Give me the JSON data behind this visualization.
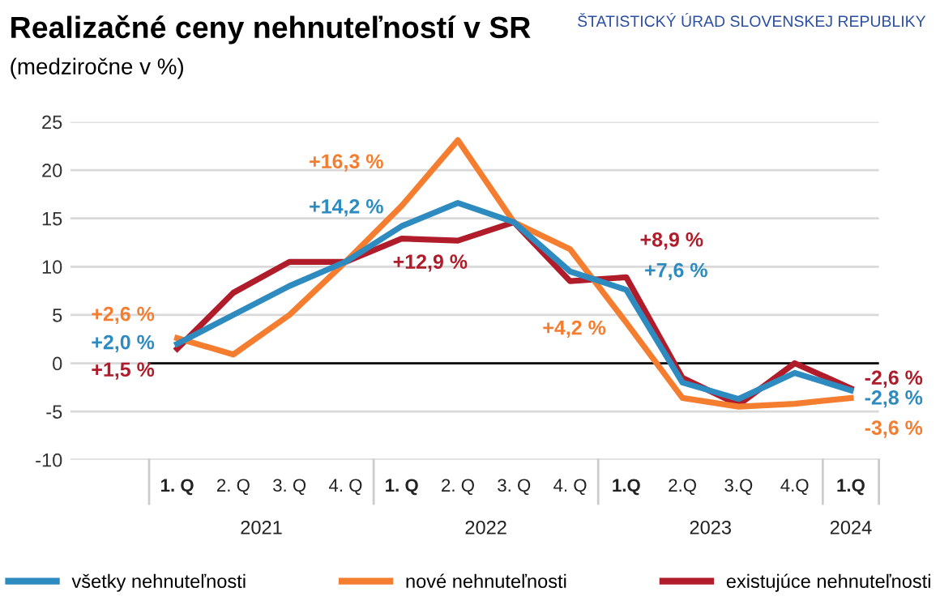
{
  "chart_data": {
    "type": "line",
    "title": "Realizačné ceny nehnuteľností v SR",
    "subtitle": "(medziročne v %)",
    "categories": [
      "1. Q",
      "2. Q",
      "3. Q",
      "4. Q",
      "1. Q",
      "2. Q",
      "3. Q",
      "4. Q",
      "1.Q",
      "2.Q",
      "3.Q",
      "4.Q",
      "1.Q"
    ],
    "annotations": [
      "2021",
      "2022",
      "2023",
      "2024",
      "ŠTATISTICKÝ ÚRAD SLOVENSKEJ REPUBLIKY"
    ],
    "series": [
      {
        "name": "všetky nehnuteľnosti",
        "color": "#2e8bc0",
        "values": [
          2.0,
          5.0,
          8.0,
          10.5,
          14.2,
          16.6,
          14.6,
          9.5,
          7.6,
          -2.0,
          -3.7,
          -1.0,
          -2.8
        ],
        "value_labels": [
          "+2,0 %",
          null,
          null,
          null,
          "+14,2 %",
          null,
          null,
          null,
          "+7,6 %",
          null,
          null,
          null,
          "-2,8 %"
        ]
      },
      {
        "name": "nové nehnuteľnosti",
        "color": "#f47d30",
        "values": [
          2.6,
          0.9,
          5.0,
          10.5,
          16.3,
          23.1,
          14.6,
          11.8,
          4.2,
          -3.6,
          -4.5,
          -4.2,
          -3.6
        ],
        "value_labels": [
          "+2,6 %",
          null,
          null,
          null,
          "+16,3 %",
          null,
          null,
          null,
          "+4,2 %",
          null,
          null,
          null,
          "-3,6 %"
        ]
      },
      {
        "name": "existujúce nehnuteľnosti",
        "color": "#b01c2a",
        "values": [
          1.5,
          7.3,
          10.5,
          10.5,
          12.9,
          12.7,
          14.6,
          8.5,
          8.9,
          -1.5,
          -4.3,
          0.0,
          -2.6
        ],
        "value_labels": [
          "+1,5 %",
          null,
          null,
          null,
          "+12,9 %",
          null,
          null,
          null,
          "+8,9 %",
          null,
          null,
          null,
          "-2,6 %"
        ]
      }
    ],
    "ylim": [
      -10,
      25
    ],
    "yticks": [
      -10,
      -5,
      0,
      5,
      10,
      15,
      20,
      25
    ],
    "grid": "y",
    "legend": "bottom",
    "marker": "none",
    "line_style": "solid"
  }
}
